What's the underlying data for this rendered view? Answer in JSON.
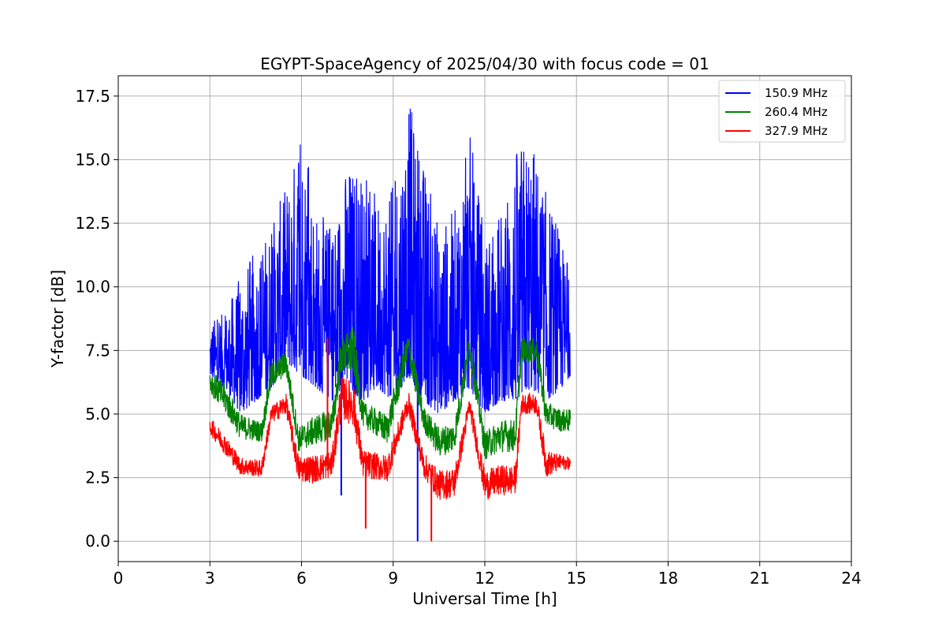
{
  "chart_data": {
    "type": "line",
    "title": "EGYPT-SpaceAgency of 2025/04/30 with focus code = 01",
    "xlabel": "Universal Time [h]",
    "ylabel": "Y-factor [dB]",
    "xlim": [
      0,
      24
    ],
    "ylim": [
      -0.8,
      18.3
    ],
    "xticks": [
      "0",
      "3",
      "6",
      "9",
      "12",
      "15",
      "18",
      "21",
      "24"
    ],
    "yticks": [
      "0.0",
      "2.5",
      "5.0",
      "7.5",
      "10.0",
      "12.5",
      "15.0",
      "17.5"
    ],
    "grid": true,
    "legend_position": "top-right",
    "x_range_data": [
      3.0,
      14.8
    ],
    "series": [
      {
        "name": "150.9 MHz",
        "color": "#0000ff",
        "x": [
          3.0,
          3.5,
          4.0,
          4.5,
          5.0,
          5.5,
          6.0,
          6.5,
          7.0,
          7.5,
          8.0,
          8.5,
          9.0,
          9.5,
          10.0,
          10.5,
          11.0,
          11.5,
          12.0,
          12.5,
          13.0,
          13.5,
          14.0,
          14.5,
          14.8
        ],
        "low": [
          6.5,
          6.0,
          5.0,
          5.5,
          6.0,
          7.0,
          6.5,
          6.0,
          5.5,
          6.0,
          5.5,
          6.0,
          5.5,
          6.5,
          5.5,
          5.0,
          5.5,
          6.0,
          5.0,
          5.5,
          5.5,
          6.0,
          5.5,
          6.0,
          6.5
        ],
        "high": [
          8.7,
          9.0,
          10.5,
          11.5,
          12.5,
          14.0,
          16.2,
          13.0,
          12.5,
          15.0,
          14.5,
          13.5,
          14.0,
          17.5,
          15.0,
          12.5,
          13.0,
          16.2,
          12.0,
          13.0,
          15.5,
          16.1,
          13.8,
          12.0,
          10.5
        ],
        "dips": [
          [
            7.3,
            1.8
          ],
          [
            9.8,
            0.0
          ]
        ]
      },
      {
        "name": "260.4 MHz",
        "color": "#008000",
        "x": [
          3.0,
          3.5,
          4.0,
          4.7,
          5.0,
          5.5,
          5.9,
          6.5,
          7.0,
          7.3,
          7.7,
          8.0,
          8.8,
          9.5,
          10.0,
          10.5,
          11.0,
          11.5,
          12.0,
          12.5,
          13.0,
          13.2,
          13.7,
          14.0,
          14.5,
          14.8
        ],
        "low": [
          5.8,
          5.0,
          4.0,
          3.9,
          6.0,
          6.5,
          3.5,
          3.8,
          4.0,
          6.5,
          6.5,
          4.5,
          3.8,
          7.0,
          4.3,
          3.3,
          3.5,
          7.2,
          3.2,
          3.5,
          3.5,
          7.0,
          7.0,
          4.5,
          4.3,
          4.3
        ],
        "high": [
          6.8,
          6.2,
          5.0,
          4.7,
          7.0,
          7.5,
          4.5,
          5.0,
          5.2,
          8.0,
          8.5,
          5.5,
          5.0,
          8.3,
          5.3,
          4.5,
          4.7,
          8.2,
          4.3,
          4.8,
          4.8,
          8.0,
          8.0,
          5.5,
          5.2,
          5.2
        ]
      },
      {
        "name": "327.9 MHz",
        "color": "#ff0000",
        "x": [
          3.0,
          3.5,
          4.0,
          4.7,
          5.0,
          5.5,
          5.9,
          6.5,
          7.0,
          7.3,
          7.7,
          8.0,
          8.8,
          9.5,
          10.0,
          10.5,
          11.0,
          11.5,
          12.0,
          12.5,
          13.0,
          13.2,
          13.7,
          14.0,
          14.5,
          14.8
        ],
        "low": [
          4.2,
          3.4,
          2.6,
          2.5,
          4.6,
          5.0,
          2.3,
          2.3,
          2.5,
          4.8,
          4.5,
          2.5,
          2.3,
          5.0,
          2.5,
          1.6,
          1.7,
          5.0,
          1.6,
          1.8,
          1.8,
          5.0,
          5.0,
          2.5,
          2.8,
          2.8
        ],
        "high": [
          4.9,
          4.2,
          3.3,
          3.2,
          5.3,
          5.8,
          3.4,
          3.4,
          3.6,
          6.5,
          6.3,
          3.6,
          3.4,
          5.9,
          3.5,
          2.8,
          2.9,
          5.7,
          2.8,
          3.0,
          3.0,
          5.8,
          5.8,
          3.6,
          3.4,
          3.3
        ],
        "spikes": [
          [
            6.85,
            8.0
          ],
          [
            8.1,
            0.5
          ],
          [
            10.25,
            0.0
          ]
        ]
      }
    ]
  }
}
